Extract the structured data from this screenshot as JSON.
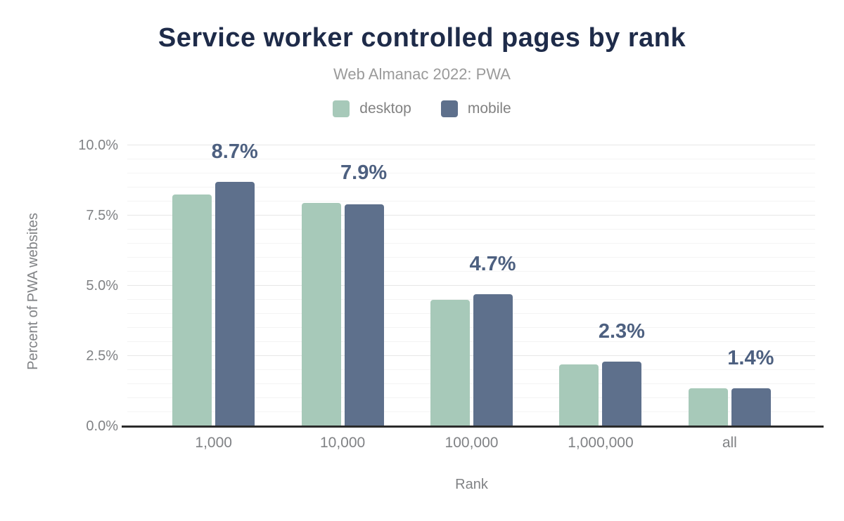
{
  "chart_data": {
    "type": "bar",
    "title": "Service worker controlled pages by rank",
    "subtitle": "Web Almanac 2022: PWA",
    "xlabel": "Rank",
    "ylabel": "Percent of PWA websites",
    "categories": [
      "1,000",
      "10,000",
      "100,000",
      "1,000,000",
      "all"
    ],
    "series": [
      {
        "name": "desktop",
        "color": "#a7c9b9",
        "values": [
          8.25,
          7.95,
          4.5,
          2.2,
          1.35
        ]
      },
      {
        "name": "mobile",
        "color": "#5e708c",
        "values": [
          8.7,
          7.9,
          4.7,
          2.3,
          1.35
        ]
      }
    ],
    "bar_labels": [
      "8.7%",
      "7.9%",
      "4.7%",
      "2.3%",
      "1.4%"
    ],
    "bar_labels_series": "mobile",
    "ylim": [
      0,
      10
    ],
    "yticks": [
      {
        "value": 0,
        "label": "0.0%"
      },
      {
        "value": 2.5,
        "label": "2.5%"
      },
      {
        "value": 5,
        "label": "5.0%"
      },
      {
        "value": 7.5,
        "label": "7.5%"
      },
      {
        "value": 10,
        "label": "10.0%"
      }
    ],
    "minor_grid_step": 0.5,
    "major_grid_step": 2.5,
    "grid": true,
    "legend_position": "top"
  },
  "colors": {
    "background": "#ffffff",
    "title_text": "#1e2b49",
    "subtitle_text": "#9a9a9a",
    "legend_text": "#828282",
    "axis_text": "#808285",
    "bar_label_text": "#4d6080",
    "axis_line": "#2b2b2b",
    "grid_major": "#e7e7e7",
    "grid_minor": "#f4f4f4",
    "desktop_bar": "#a7c9b9",
    "mobile_bar": "#5e708c"
  }
}
